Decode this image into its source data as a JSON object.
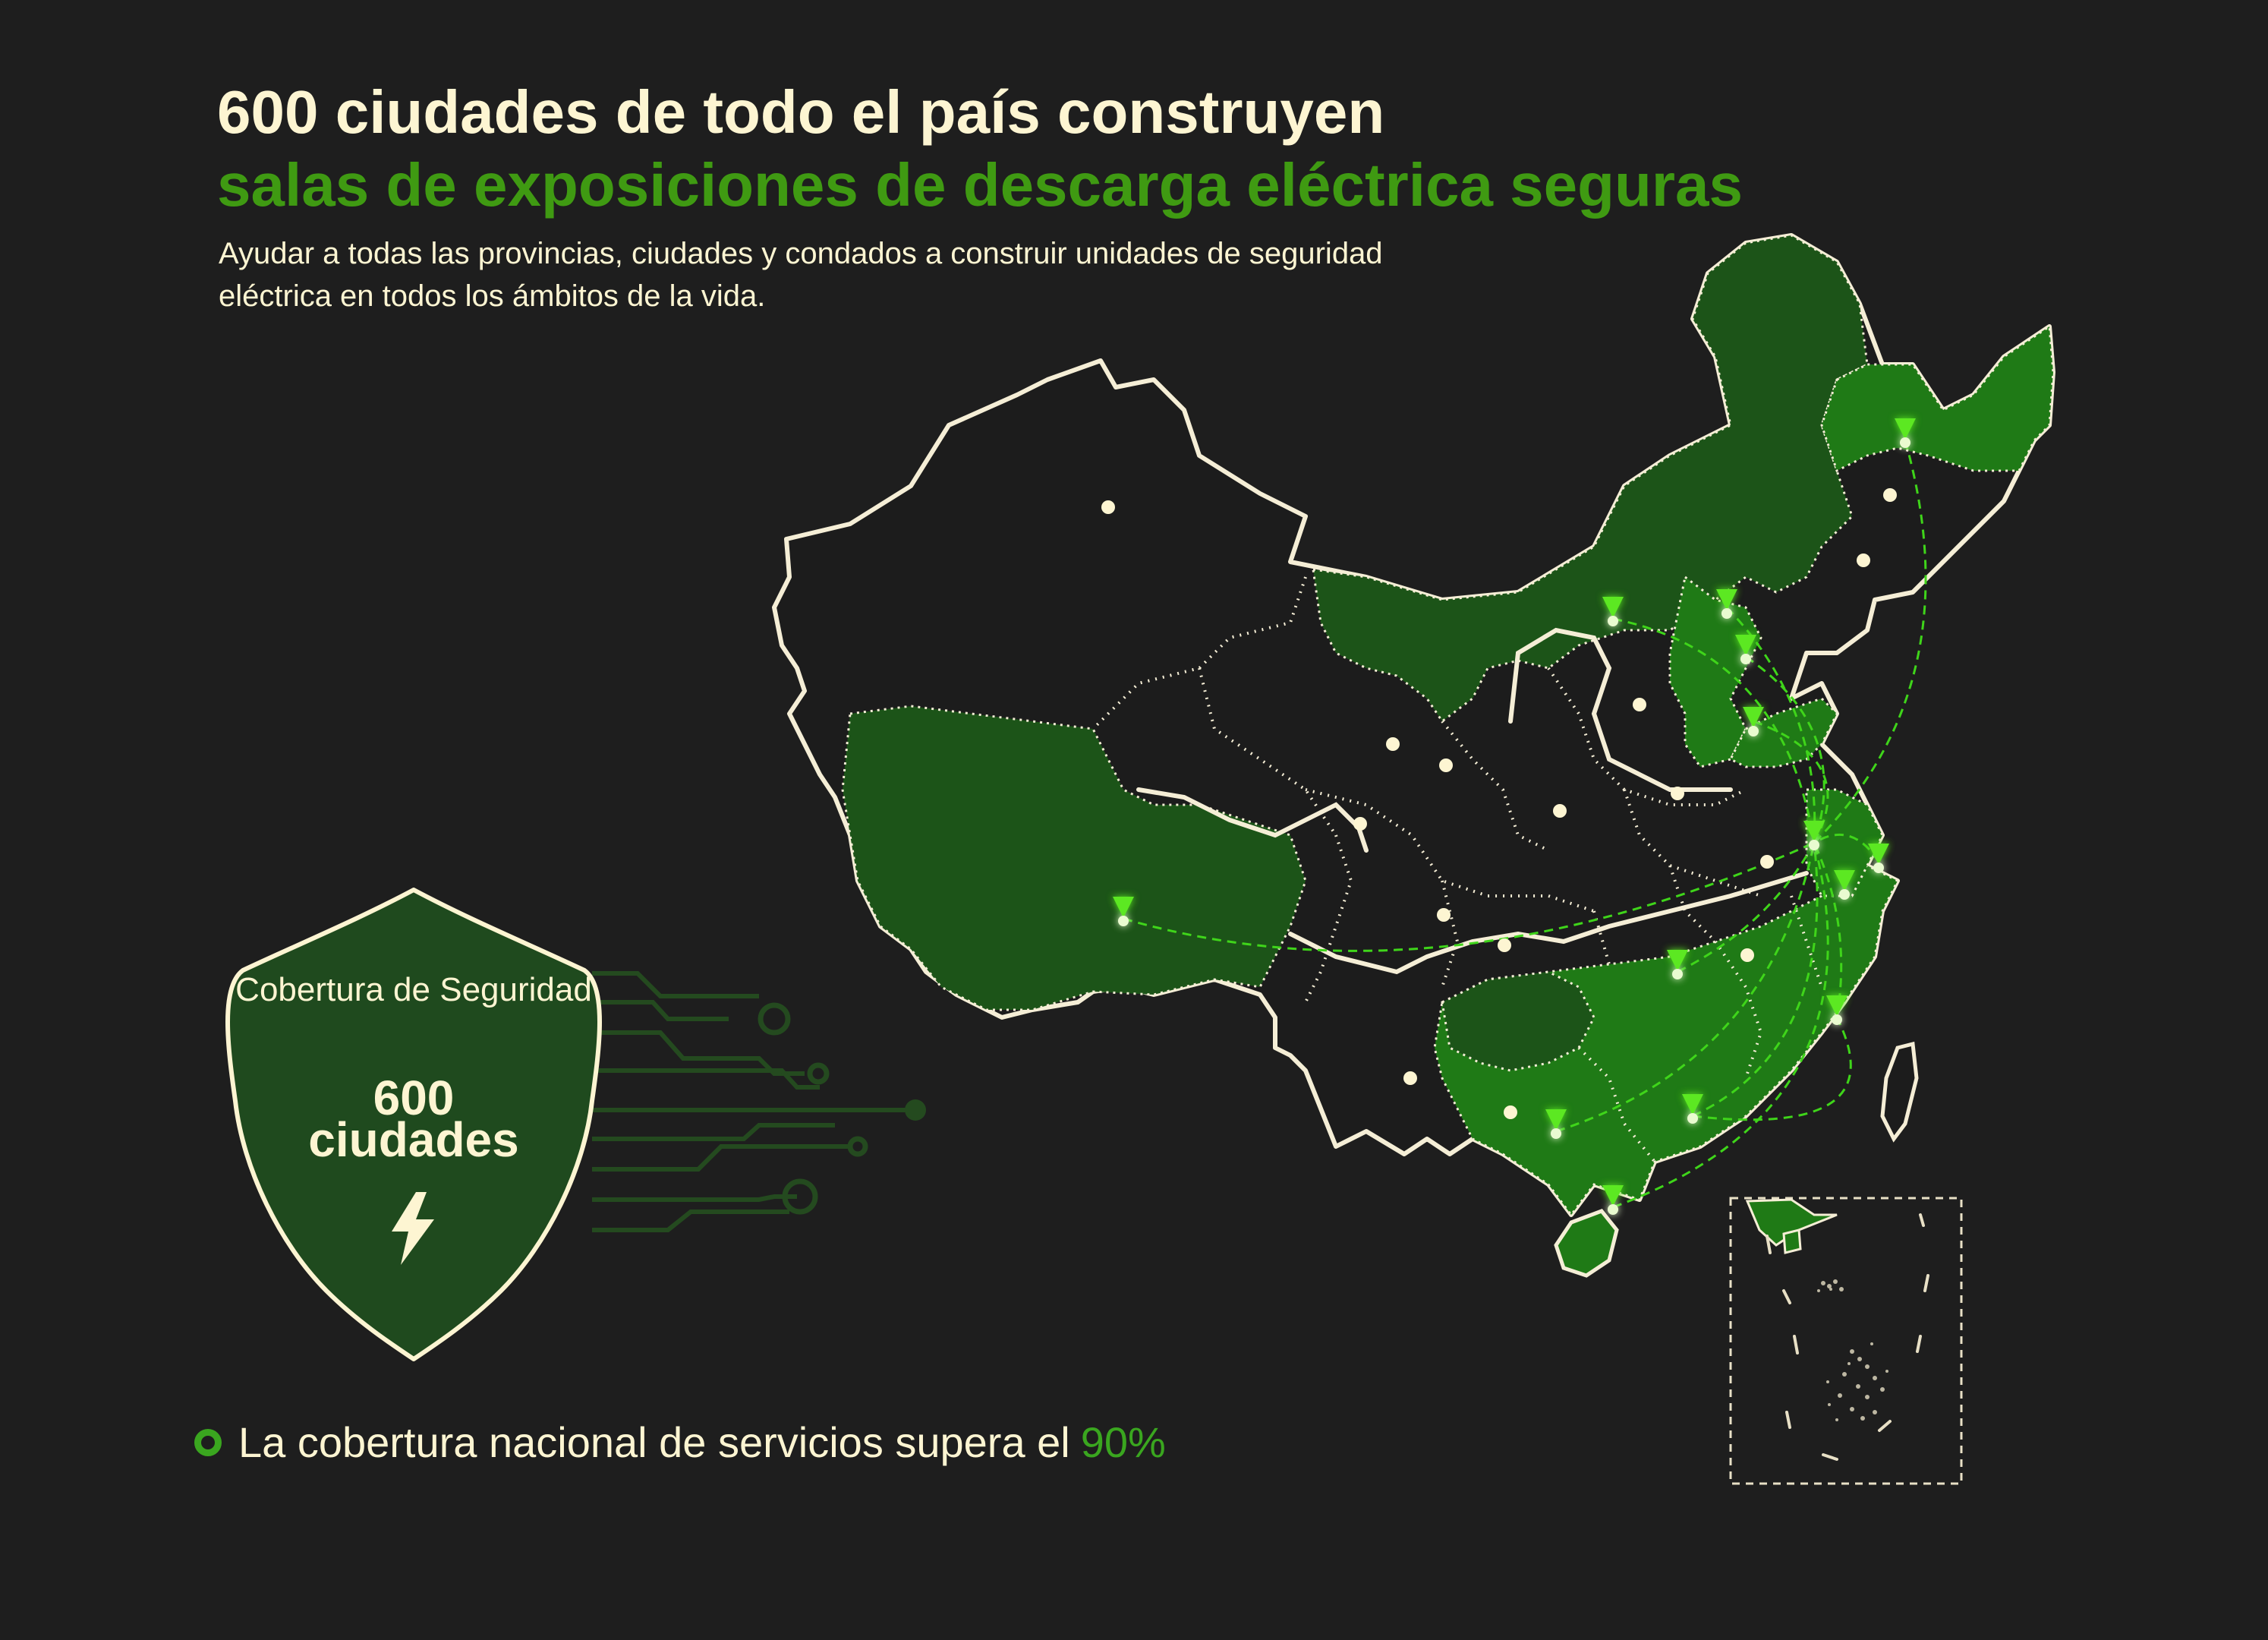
{
  "header": {
    "title_line1": "600 ciudades de todo el país construyen",
    "title_line2": "salas de exposiciones de descarga eléctrica seguras",
    "subtitle": "Ayudar a todas las provincias, ciudades y condados a construir unidades de seguridad eléctrica en todos los ámbitos de la vida."
  },
  "badge": {
    "label": "Cobertura de Seguridad",
    "number": "600",
    "unit": "ciudades",
    "icon": "lightning-icon"
  },
  "footer": {
    "text": "La cobertura nacional de servicios supera el",
    "percent": "90%",
    "icon": "ring-icon"
  },
  "colors": {
    "background": "#1e1e1e",
    "accent_green": "#3f9a12",
    "cream": "#fdf5d2",
    "dark_green": "#1c5418",
    "mid_green": "#1f7a16",
    "bright_green": "#5ce820",
    "shield_fill": "#1f4a1e"
  }
}
